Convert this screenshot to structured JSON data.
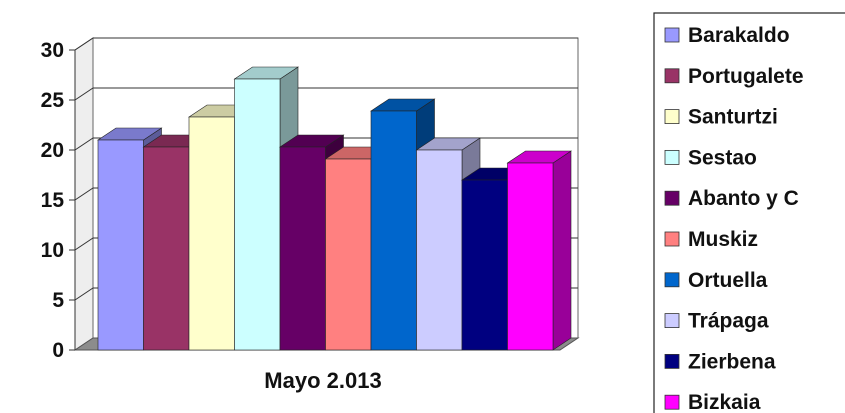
{
  "chart_data": {
    "type": "bar",
    "categories": [
      "Mayo 2.013"
    ],
    "series": [
      {
        "name": "Barakaldo",
        "values": [
          21
        ],
        "color": "#9999ff"
      },
      {
        "name": "Portugalete",
        "values": [
          20.3
        ],
        "color": "#993366"
      },
      {
        "name": "Santurtzi",
        "values": [
          23.3
        ],
        "color": "#ffffcc"
      },
      {
        "name": "Sestao",
        "values": [
          27.1
        ],
        "color": "#ccffff"
      },
      {
        "name": "Abanto y C",
        "values": [
          20.3
        ],
        "color": "#660066"
      },
      {
        "name": "Muskiz",
        "values": [
          19.1
        ],
        "color": "#ff8080"
      },
      {
        "name": "Ortuella",
        "values": [
          23.9
        ],
        "color": "#0066cc"
      },
      {
        "name": "Trápaga",
        "values": [
          20
        ],
        "color": "#ccccff"
      },
      {
        "name": "Zierbena",
        "values": [
          17
        ],
        "color": "#000080"
      },
      {
        "name": "Bizkaia",
        "values": [
          18.7
        ],
        "color": "#ff00ff"
      }
    ],
    "yticks": [
      "0",
      "5",
      "10",
      "15",
      "20",
      "25",
      "30"
    ],
    "ylim": [
      0,
      30
    ],
    "grid": true,
    "style": "3d-clustered-column",
    "legend_position": "right"
  }
}
